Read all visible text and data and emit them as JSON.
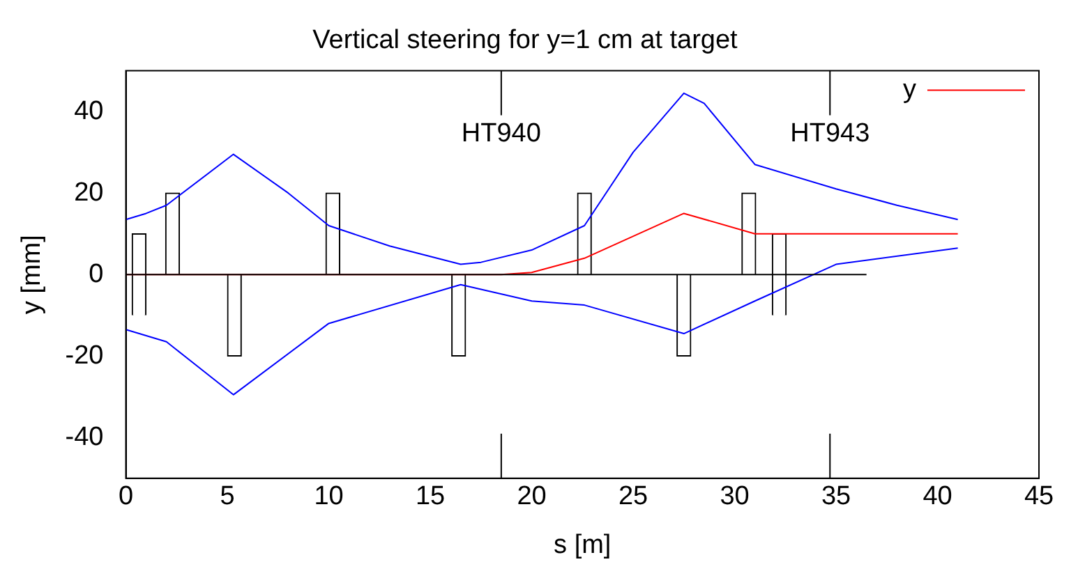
{
  "chart_data": {
    "type": "line",
    "title": "Vertical steering for y=1 cm at target",
    "xlabel": "s [m]",
    "ylabel": "y [mm]",
    "xlim": [
      0,
      45
    ],
    "xticks": [
      0,
      5,
      10,
      15,
      20,
      25,
      30,
      35,
      40,
      45
    ],
    "ylim": [
      -50,
      50
    ],
    "yticks": [
      -40,
      -20,
      0,
      20,
      40
    ],
    "grid": false,
    "legend": "top right",
    "marker": "none",
    "line_style": "solid",
    "series": [
      {
        "type": "bar",
        "color": "#ffffff",
        "x": [
          0.65,
          2.3,
          5.35,
          10.2,
          16.4,
          22.6,
          27.5,
          30.7,
          32.2
        ],
        "base": [
          -10,
          0,
          0,
          0,
          0,
          0,
          0,
          0,
          -10
        ],
        "values": [
          20,
          20,
          -20,
          20,
          -20,
          20,
          -20,
          20,
          20
        ]
      },
      {
        "color": "#000000",
        "x": [
          0,
          36.5
        ],
        "values": [
          0,
          0
        ]
      },
      {
        "color": "#0000ff",
        "x": [
          0,
          1,
          2,
          5.3,
          8,
          10,
          13,
          16.5,
          17.5,
          20,
          22.6,
          25,
          27.5,
          28.5,
          31,
          35,
          38,
          41
        ],
        "values": [
          13.5,
          15,
          17,
          29.5,
          20,
          12,
          7,
          2.5,
          3,
          6,
          12,
          30,
          44.5,
          42,
          27,
          21,
          17,
          13.5
        ]
      },
      {
        "color": "#0000ff",
        "x": [
          0,
          2,
          5.3,
          10,
          16.5,
          20,
          22.6,
          27.5,
          31,
          35,
          41
        ],
        "values": [
          -13.5,
          -16.5,
          -29.5,
          -12,
          -2.5,
          -6.5,
          -7.5,
          -14.5,
          -6.5,
          2.5,
          6.5
        ]
      },
      {
        "name": "y",
        "color": "#ff0000",
        "x": [
          0,
          18.5,
          20,
          22.6,
          27.5,
          31,
          41
        ],
        "values": [
          0,
          0,
          0.5,
          4,
          15,
          10,
          10
        ]
      }
    ],
    "ref_lines": [
      {
        "axis": "x",
        "value": 18.5,
        "label": "HT940"
      },
      {
        "axis": "x",
        "value": 34.7,
        "label": "HT943"
      }
    ]
  }
}
